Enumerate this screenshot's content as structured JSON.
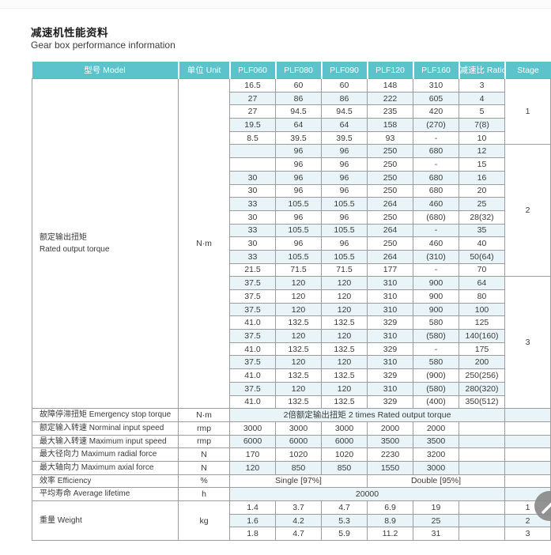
{
  "page": {
    "title_zh": "减速机性能资料",
    "title_en": "Gear box performance information"
  },
  "colors": {
    "header_bg": "#5cc3cd",
    "header_text": "#ffffff",
    "row_stripe": "#e8f4f7",
    "grid_border": "#9c9c9c",
    "fab_bg": "#8a8a8a"
  },
  "table": {
    "columns": [
      {
        "key": "model",
        "label": "型号 Model"
      },
      {
        "key": "unit",
        "label": "单位 Unit"
      },
      {
        "key": "plf060",
        "label": "PLF060"
      },
      {
        "key": "plf080",
        "label": "PLF080"
      },
      {
        "key": "plf090",
        "label": "PLF090"
      },
      {
        "key": "plf120",
        "label": "PLF120"
      },
      {
        "key": "plf160",
        "label": "PLF160"
      },
      {
        "key": "ratio",
        "label": "减速比 Ratio"
      },
      {
        "key": "stage",
        "label": "Stage"
      }
    ],
    "torque_section": {
      "label_zh": "额定输出扭矩",
      "label_en": "Rated output torque",
      "unit": "N·m",
      "stages": [
        {
          "stage": "1",
          "rows": [
            [
              "16.5",
              "60",
              "60",
              "148",
              "310",
              "3"
            ],
            [
              "27",
              "86",
              "86",
              "222",
              "605",
              "4"
            ],
            [
              "27",
              "94.5",
              "94.5",
              "235",
              "420",
              "5"
            ],
            [
              "19.5",
              "64",
              "64",
              "158",
              "(270)",
              "7(8)"
            ],
            [
              "8.5",
              "39.5",
              "39.5",
              "93",
              "-",
              "10"
            ]
          ]
        },
        {
          "stage": "2",
          "rows": [
            [
              "",
              "96",
              "96",
              "250",
              "680",
              "12"
            ],
            [
              "",
              "96",
              "96",
              "250",
              "-",
              "15"
            ],
            [
              "30",
              "96",
              "96",
              "250",
              "680",
              "16"
            ],
            [
              "30",
              "96",
              "96",
              "250",
              "680",
              "20"
            ],
            [
              "33",
              "105.5",
              "105.5",
              "264",
              "460",
              "25"
            ],
            [
              "30",
              "96",
              "96",
              "250",
              "(680)",
              "28(32)"
            ],
            [
              "33",
              "105.5",
              "105.5",
              "264",
              "-",
              "35"
            ],
            [
              "30",
              "96",
              "96",
              "250",
              "460",
              "40"
            ],
            [
              "33",
              "105.5",
              "105.5",
              "264",
              "(310)",
              "50(64)"
            ],
            [
              "21.5",
              "71.5",
              "71.5",
              "177",
              "-",
              "70"
            ]
          ]
        },
        {
          "stage": "3",
          "rows": [
            [
              "37.5",
              "120",
              "120",
              "310",
              "900",
              "64"
            ],
            [
              "37.5",
              "120",
              "120",
              "310",
              "900",
              "80"
            ],
            [
              "37.5",
              "120",
              "120",
              "310",
              "900",
              "100"
            ],
            [
              "41.0",
              "132.5",
              "132.5",
              "329",
              "580",
              "125"
            ],
            [
              "37.5",
              "120",
              "120",
              "310",
              "(580)",
              "140(160)"
            ],
            [
              "41.0",
              "132.5",
              "132.5",
              "329",
              "-",
              "175"
            ],
            [
              "37.5",
              "120",
              "120",
              "310",
              "580",
              "200"
            ],
            [
              "41.0",
              "132.5",
              "132.5",
              "329",
              "(900)",
              "250(256)"
            ],
            [
              "37.5",
              "120",
              "120",
              "310",
              "(580)",
              "280(320)"
            ],
            [
              "41.0",
              "132.5",
              "132.5",
              "329",
              "(400)",
              "350(512)"
            ]
          ]
        }
      ]
    },
    "spec_rows": [
      {
        "label": "故障停滞扭矩 Emergency stop torque",
        "unit": "N·m",
        "span": "2倍额定输出扭矩  2 times Rated output torque"
      },
      {
        "label": "额定输入转速 Norminal input speed",
        "unit": "rmp",
        "values": [
          "3000",
          "3000",
          "3000",
          "2000",
          "2000"
        ]
      },
      {
        "label": "最大输入转速 Maximum input speed",
        "unit": "rmp",
        "values": [
          "6000",
          "6000",
          "6000",
          "3500",
          "3500"
        ]
      },
      {
        "label": "最大径向力 Maximum radial force",
        "unit": "N",
        "values": [
          "170",
          "1020",
          "1020",
          "2230",
          "3200"
        ]
      },
      {
        "label": "最大轴向力 Maximum axial force",
        "unit": "N",
        "values": [
          "120",
          "850",
          "850",
          "1550",
          "3000"
        ]
      },
      {
        "label": "效率 Efficiency",
        "unit": "%",
        "split": [
          "Single [97%]",
          "Double [95%]"
        ]
      },
      {
        "label": "平均寿命 Average lifetime",
        "unit": "h",
        "span": "20000"
      }
    ],
    "weight_section": {
      "label": "重量 Weight",
      "unit": "kg",
      "rows": [
        {
          "values": [
            "1.4",
            "3.7",
            "4.7",
            "6.9",
            "19"
          ],
          "stage": "1"
        },
        {
          "values": [
            "1.6",
            "4.2",
            "5.3",
            "8.9",
            "25"
          ],
          "stage": "2"
        },
        {
          "values": [
            "1.8",
            "4.7",
            "5.9",
            "11.2",
            "31"
          ],
          "stage": "3"
        }
      ]
    }
  },
  "fab": {
    "icon": "arrow-up-right"
  }
}
